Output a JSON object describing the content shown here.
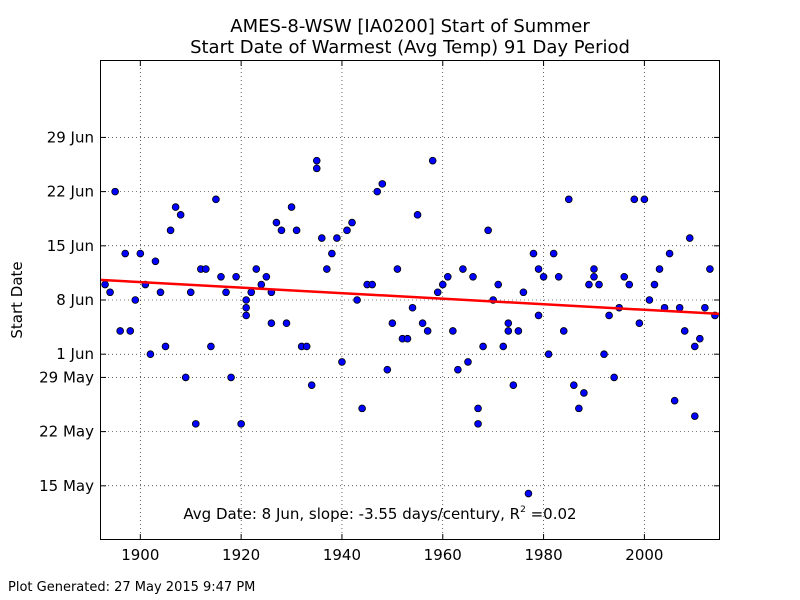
{
  "colors": {
    "point_fill": "#0000ff",
    "trend_line": "#ff0000",
    "frame": "#000000"
  },
  "chart_data": {
    "type": "scatter",
    "title": "AMES-8-WSW [IA0200] Start of Summer",
    "subtitle": "Start Date of Warmest (Avg Temp) 91 Day Period",
    "xlabel": "",
    "ylabel": "Start Date",
    "xlim": [
      1892,
      2015
    ],
    "ylim_day_of_year": [
      128,
      190
    ],
    "grid": true,
    "x_ticks": [
      1900,
      1920,
      1940,
      1960,
      1980,
      2000
    ],
    "y_ticks": [
      {
        "label": "15 May",
        "day": 135
      },
      {
        "label": "22 May",
        "day": 142
      },
      {
        "label": "29 May",
        "day": 149
      },
      {
        "label": "1 Jun",
        "day": 152
      },
      {
        "label": "8 Jun",
        "day": 159
      },
      {
        "label": "15 Jun",
        "day": 166
      },
      {
        "label": "22 Jun",
        "day": 173
      },
      {
        "label": "29 Jun",
        "day": 180
      }
    ],
    "annotation": {
      "text_before": "Avg Date: 8 Jun, slope: -3.55 days/century, R",
      "superscript": "2",
      "text_after": " =0.02"
    },
    "trend": {
      "x": [
        1892,
        2015
      ],
      "day": [
        161.6,
        157.2
      ]
    },
    "series": [
      {
        "points": [
          [
            1893,
            161
          ],
          [
            1894,
            160
          ],
          [
            1895,
            173
          ],
          [
            1896,
            155
          ],
          [
            1897,
            165
          ],
          [
            1898,
            155
          ],
          [
            1899,
            159
          ],
          [
            1900,
            165
          ],
          [
            1901,
            161
          ],
          [
            1902,
            152
          ],
          [
            1903,
            164
          ],
          [
            1904,
            160
          ],
          [
            1905,
            153
          ],
          [
            1906,
            168
          ],
          [
            1907,
            171
          ],
          [
            1908,
            170
          ],
          [
            1909,
            149
          ],
          [
            1910,
            160
          ],
          [
            1911,
            143
          ],
          [
            1912,
            163
          ],
          [
            1913,
            163
          ],
          [
            1914,
            153
          ],
          [
            1915,
            172
          ],
          [
            1916,
            162
          ],
          [
            1917,
            160
          ],
          [
            1918,
            149
          ],
          [
            1919,
            162
          ],
          [
            1920,
            143
          ],
          [
            1921,
            157
          ],
          [
            1921,
            158
          ],
          [
            1921,
            159
          ],
          [
            1922,
            160
          ],
          [
            1923,
            163
          ],
          [
            1924,
            161
          ],
          [
            1925,
            162
          ],
          [
            1926,
            156
          ],
          [
            1926,
            160
          ],
          [
            1927,
            169
          ],
          [
            1928,
            168
          ],
          [
            1929,
            156
          ],
          [
            1930,
            171
          ],
          [
            1931,
            168
          ],
          [
            1932,
            153
          ],
          [
            1933,
            153
          ],
          [
            1934,
            148
          ],
          [
            1935,
            176
          ],
          [
            1935,
            177
          ],
          [
            1936,
            167
          ],
          [
            1937,
            163
          ],
          [
            1938,
            165
          ],
          [
            1939,
            167
          ],
          [
            1940,
            151
          ],
          [
            1941,
            168
          ],
          [
            1942,
            169
          ],
          [
            1943,
            159
          ],
          [
            1944,
            145
          ],
          [
            1945,
            161
          ],
          [
            1946,
            161
          ],
          [
            1947,
            173
          ],
          [
            1948,
            174
          ],
          [
            1949,
            150
          ],
          [
            1950,
            156
          ],
          [
            1951,
            163
          ],
          [
            1952,
            154
          ],
          [
            1953,
            154
          ],
          [
            1954,
            158
          ],
          [
            1955,
            170
          ],
          [
            1956,
            156
          ],
          [
            1957,
            155
          ],
          [
            1958,
            177
          ],
          [
            1959,
            160
          ],
          [
            1960,
            161
          ],
          [
            1961,
            162
          ],
          [
            1962,
            155
          ],
          [
            1963,
            150
          ],
          [
            1964,
            163
          ],
          [
            1965,
            151
          ],
          [
            1966,
            162
          ],
          [
            1967,
            145
          ],
          [
            1967,
            143
          ],
          [
            1968,
            153
          ],
          [
            1969,
            168
          ],
          [
            1970,
            159
          ],
          [
            1971,
            161
          ],
          [
            1972,
            153
          ],
          [
            1973,
            156
          ],
          [
            1973,
            155
          ],
          [
            1974,
            148
          ],
          [
            1975,
            155
          ],
          [
            1976,
            160
          ],
          [
            1977,
            134
          ],
          [
            1978,
            165
          ],
          [
            1979,
            157
          ],
          [
            1979,
            163
          ],
          [
            1980,
            162
          ],
          [
            1981,
            152
          ],
          [
            1982,
            165
          ],
          [
            1983,
            162
          ],
          [
            1984,
            155
          ],
          [
            1985,
            172
          ],
          [
            1986,
            148
          ],
          [
            1987,
            145
          ],
          [
            1988,
            147
          ],
          [
            1989,
            161
          ],
          [
            1990,
            163
          ],
          [
            1990,
            162
          ],
          [
            1991,
            161
          ],
          [
            1992,
            152
          ],
          [
            1993,
            157
          ],
          [
            1994,
            149
          ],
          [
            1995,
            158
          ],
          [
            1996,
            162
          ],
          [
            1997,
            161
          ],
          [
            1998,
            172
          ],
          [
            1999,
            156
          ],
          [
            2000,
            172
          ],
          [
            2001,
            159
          ],
          [
            2002,
            161
          ],
          [
            2003,
            163
          ],
          [
            2004,
            158
          ],
          [
            2005,
            165
          ],
          [
            2006,
            146
          ],
          [
            2007,
            158
          ],
          [
            2008,
            155
          ],
          [
            2009,
            167
          ],
          [
            2010,
            153
          ],
          [
            2010,
            144
          ],
          [
            2011,
            154
          ],
          [
            2012,
            158
          ],
          [
            2013,
            163
          ],
          [
            2014,
            157
          ]
        ]
      }
    ]
  },
  "footer": "Plot Generated: 27 May 2015 9:47 PM"
}
